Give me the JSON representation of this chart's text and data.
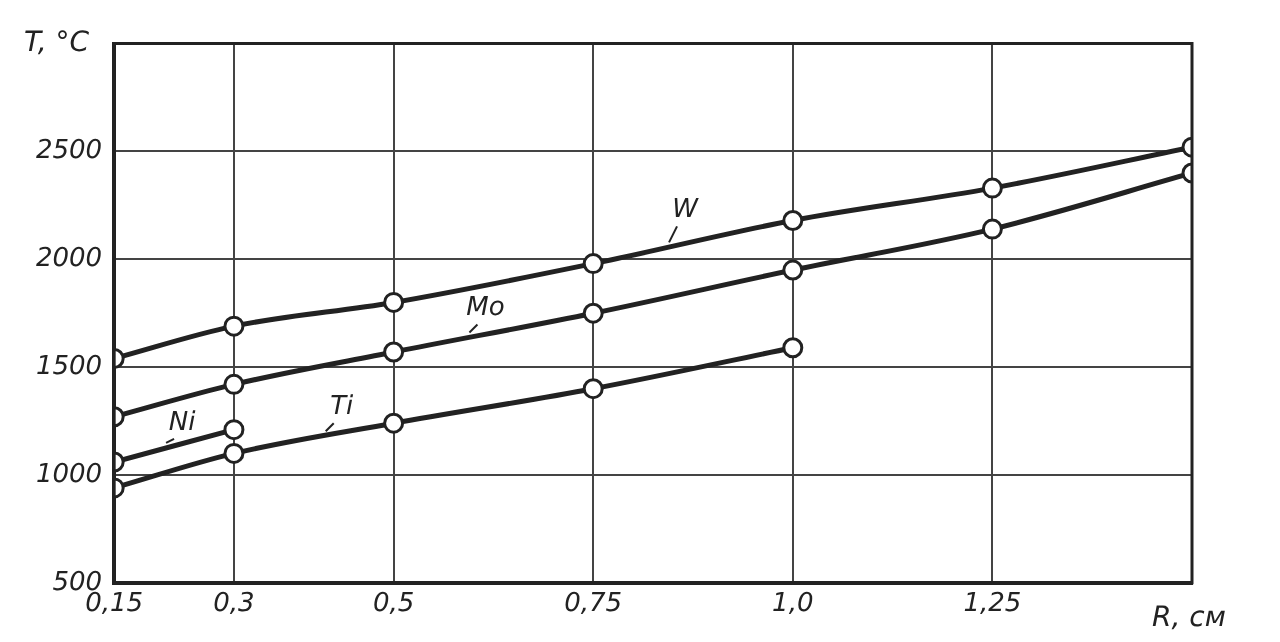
{
  "chart_data": {
    "type": "line",
    "xlabel": "R, см",
    "ylabel": "T, °C",
    "x": [
      0.15,
      0.3,
      0.5,
      0.75,
      1.0,
      1.25,
      1.5
    ],
    "xlim": [
      0.15,
      1.5
    ],
    "xticks": [
      {
        "value": 0.15,
        "label": "0,15"
      },
      {
        "value": 0.3,
        "label": "0,3"
      },
      {
        "value": 0.5,
        "label": "0,5"
      },
      {
        "value": 0.75,
        "label": "0,75"
      },
      {
        "value": 1.0,
        "label": "1,0"
      },
      {
        "value": 1.25,
        "label": "1,25"
      }
    ],
    "ylim": [
      500,
      3000
    ],
    "yticks": [
      500,
      1000,
      1500,
      2000,
      2500
    ],
    "series": [
      {
        "name": "W",
        "color": "#222222",
        "values": [
          1540,
          1690,
          1800,
          1980,
          2180,
          2330,
          2520
        ]
      },
      {
        "name": "Mo",
        "color": "#222222",
        "values": [
          1270,
          1420,
          1570,
          1750,
          1950,
          2140,
          2400
        ]
      },
      {
        "name": "Ni",
        "color": "#222222",
        "values": [
          1060,
          1210,
          null,
          null,
          null,
          null,
          null
        ]
      },
      {
        "name": "Ti",
        "color": "#222222",
        "values": [
          940,
          1100,
          1240,
          1400,
          1590,
          null,
          null
        ]
      }
    ],
    "grid": true,
    "legend": false,
    "marker": "circle",
    "line_style": "solid"
  }
}
